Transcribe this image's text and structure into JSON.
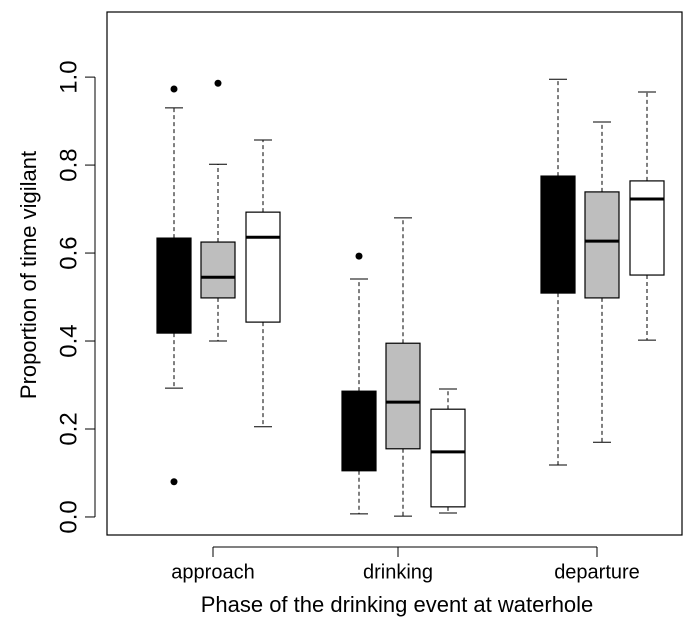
{
  "chart_data": {
    "type": "box",
    "xlabel": "Phase of the drinking event at waterhole",
    "ylabel": "Proportion of time vigilant",
    "categories": [
      "approach",
      "drinking",
      "departure"
    ],
    "ylim": [
      -0.041,
      1.148
    ],
    "yticks": [
      {
        "value": 0,
        "label": "0.0"
      },
      0.2,
      0.4,
      0.6,
      0.8,
      {
        "value": 1,
        "label": "1.0"
      }
    ],
    "series": [
      {
        "color": "#000000",
        "whislo": [
          0.293,
          0.007,
          0.118
        ],
        "q1": [
          0.418,
          0.105,
          0.509
        ],
        "med": [
          0.52,
          0.2,
          0.64
        ],
        "q3": [
          0.634,
          0.286,
          0.775
        ],
        "whishi": [
          0.93,
          0.541,
          0.995
        ],
        "outliers": [
          [
            0.973,
            0.08
          ],
          [
            0.593
          ],
          []
        ]
      },
      {
        "color": "#bebebe",
        "whislo": [
          0.4,
          0.002,
          0.17
        ],
        "q1": [
          0.498,
          0.155,
          0.498
        ],
        "med": [
          0.545,
          0.261,
          0.627
        ],
        "q3": [
          0.625,
          0.395,
          0.739
        ],
        "whishi": [
          0.802,
          0.68,
          0.898
        ],
        "outliers": [
          [
            0.986
          ],
          [],
          []
        ]
      },
      {
        "color": "#ffffff",
        "whislo": [
          0.205,
          0.009,
          0.402
        ],
        "q1": [
          0.443,
          0.023,
          0.55
        ],
        "med": [
          0.636,
          0.148,
          0.723
        ],
        "q3": [
          0.693,
          0.245,
          0.764
        ],
        "whishi": [
          0.857,
          0.291,
          0.966
        ],
        "outliers": [
          [],
          [],
          []
        ]
      }
    ]
  }
}
